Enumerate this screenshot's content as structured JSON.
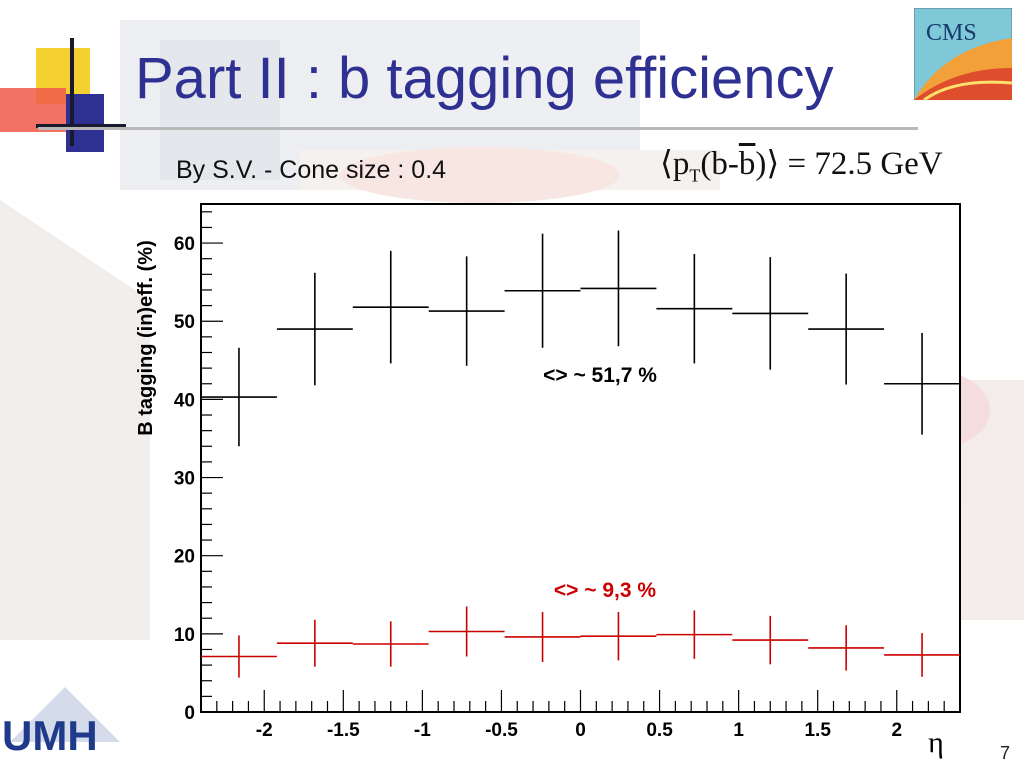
{
  "slide": {
    "title": "Part II : b tagging efficiency",
    "subtitle": "By S.V.  - Cone size : 0.4",
    "formula": {
      "open": "⟨",
      "p": "p",
      "sub": "T",
      "mid": "(b-",
      "bbar": "b",
      "close": ")⟩",
      "eq": " = 72.5 GeV"
    },
    "page_number": "7",
    "logo_right_text": "CMS",
    "logo_left_text": "UMH"
  },
  "colors": {
    "title": "#2E3192",
    "b_series": "#000000",
    "mistag_series": "#cc0000",
    "frame": "#000000"
  },
  "chart_data": {
    "type": "scatter",
    "xlabel": "η",
    "ylabel": "B   tagging   (in)eff.   (%)",
    "xlim": [
      -2.4,
      2.4
    ],
    "ylim": [
      0,
      65
    ],
    "x_ticks": [
      -2,
      -1.5,
      -1,
      -0.5,
      0,
      0.5,
      1,
      1.5,
      2
    ],
    "x_tick_labels": [
      "-2",
      "-1.5",
      "-1",
      "-0.5",
      "0",
      "0.5",
      "1",
      "1.5",
      "2"
    ],
    "y_ticks": [
      0,
      10,
      20,
      30,
      40,
      50,
      60
    ],
    "y_tick_labels": [
      "0",
      "10",
      "20",
      "30",
      "40",
      "50",
      "60"
    ],
    "bin_edges": [
      -2.4,
      -1.92,
      -1.44,
      -0.96,
      -0.48,
      0.0,
      0.48,
      0.96,
      1.44,
      1.92,
      2.4
    ],
    "series": [
      {
        "key": "b",
        "color": "#000000",
        "values": [
          40.3,
          49.0,
          51.8,
          51.3,
          53.9,
          54.2,
          51.6,
          51.0,
          49.0,
          42.0
        ],
        "errors": [
          6.3,
          7.2,
          7.2,
          7.0,
          7.3,
          7.4,
          7.0,
          7.2,
          7.1,
          6.5
        ],
        "annotation": "<> ~ 51,7 %"
      },
      {
        "key": "mistag",
        "color": "#cc0000",
        "values": [
          7.1,
          8.8,
          8.7,
          10.3,
          9.6,
          9.7,
          9.9,
          9.2,
          8.2,
          7.3
        ],
        "errors": [
          2.7,
          3.0,
          2.9,
          3.2,
          3.2,
          3.1,
          3.1,
          3.1,
          2.9,
          2.8
        ],
        "annotation": "<> ~ 9,3 %"
      }
    ]
  }
}
